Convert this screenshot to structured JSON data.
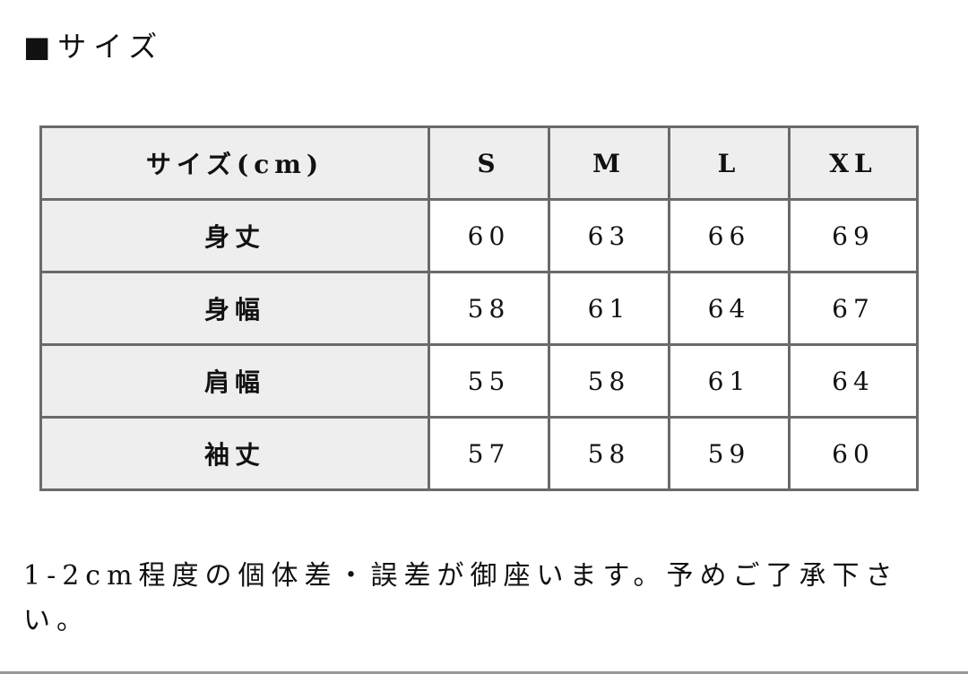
{
  "title": "■サイズ",
  "table": {
    "header": [
      "サイズ(cm)",
      "S",
      "M",
      "L",
      "XL"
    ],
    "rows": [
      {
        "label": "身丈",
        "values": [
          "60",
          "63",
          "66",
          "69"
        ]
      },
      {
        "label": "身幅",
        "values": [
          "58",
          "61",
          "64",
          "67"
        ]
      },
      {
        "label": "肩幅",
        "values": [
          "55",
          "58",
          "61",
          "64"
        ]
      },
      {
        "label": "袖丈",
        "values": [
          "57",
          "58",
          "59",
          "60"
        ]
      }
    ]
  },
  "note": "1-2cm程度の個体差・誤差が御座います。予めご了承下さい。"
}
